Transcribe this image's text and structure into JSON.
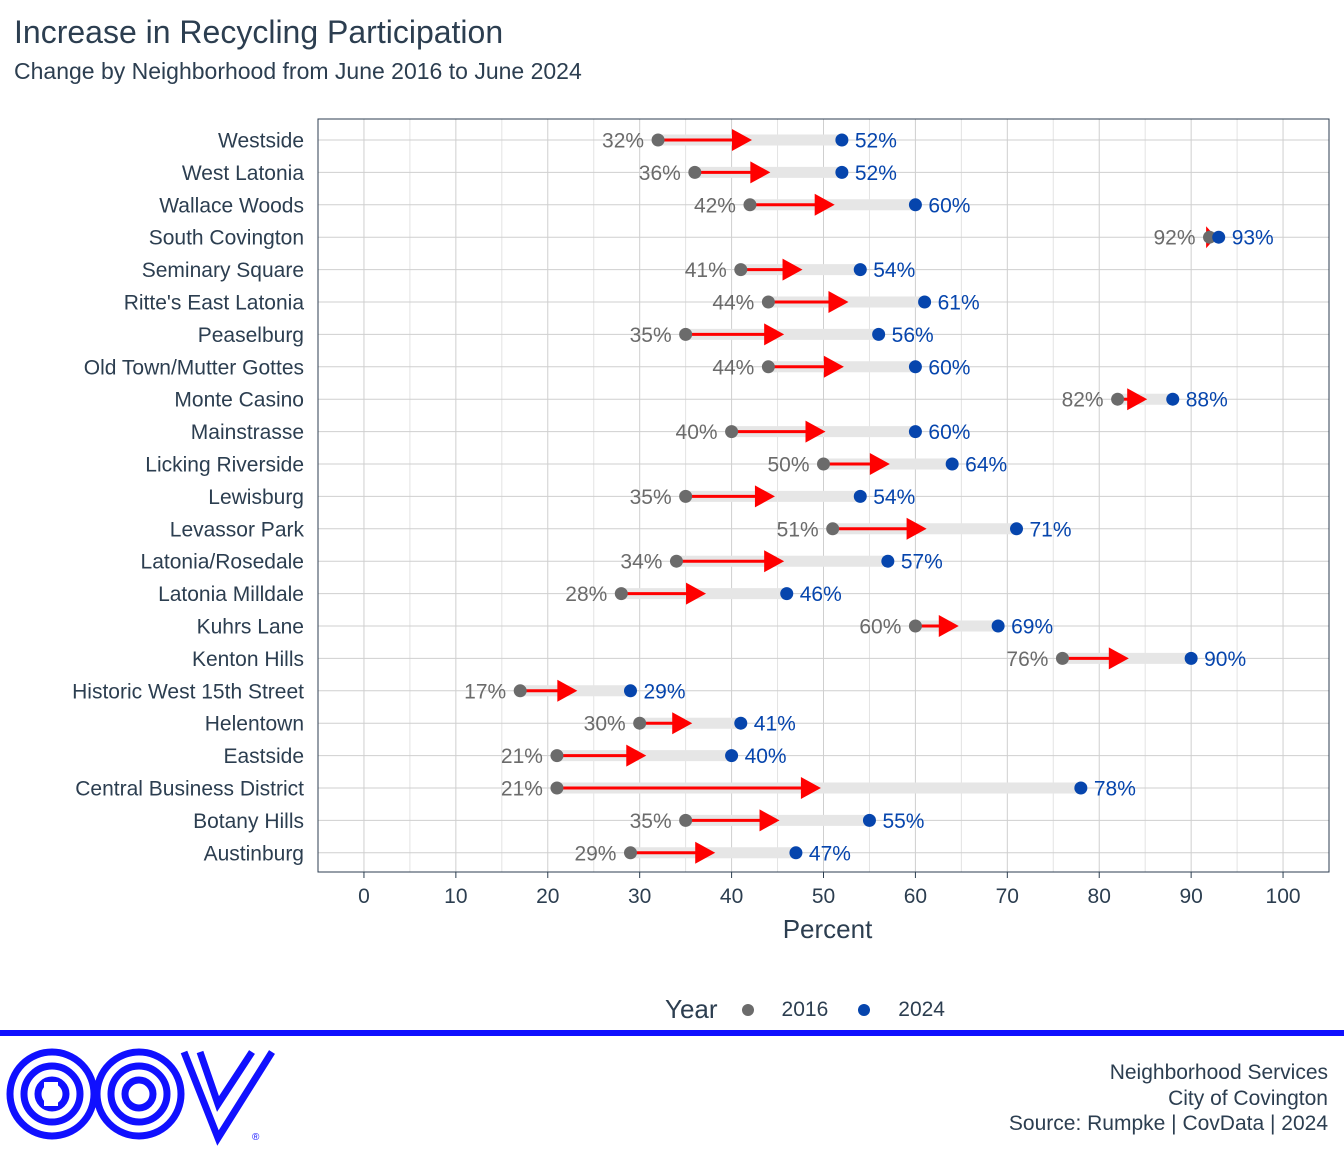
{
  "title": "Increase in Recycling Participation",
  "subtitle": "Change by Neighborhood from June 2016 to June 2024",
  "colors": {
    "y2016": "#6b6b6b",
    "y2024": "#0645ad",
    "arrow": "#ff0000",
    "band": "#e6e6e6",
    "brand": "#1010ff"
  },
  "chart_data": {
    "type": "dumbbell",
    "xlabel": "Percent",
    "xlim": [
      -5,
      105
    ],
    "xticks": [
      "0",
      "10",
      "20",
      "30",
      "40",
      "50",
      "60",
      "70",
      "80",
      "90",
      "100"
    ],
    "grid": true,
    "legend_position": "bottom",
    "legend_title": "Year",
    "series_names": [
      "2016",
      "2024"
    ],
    "rows": [
      {
        "name": "Westside",
        "v2016": 32,
        "v2024": 52,
        "l2016": "32%",
        "l2024": "52%"
      },
      {
        "name": "West Latonia",
        "v2016": 36,
        "v2024": 52,
        "l2016": "36%",
        "l2024": "52%"
      },
      {
        "name": "Wallace Woods",
        "v2016": 42,
        "v2024": 60,
        "l2016": "42%",
        "l2024": "60%"
      },
      {
        "name": "South Covington",
        "v2016": 92,
        "v2024": 93,
        "l2016": "92%",
        "l2024": "93%"
      },
      {
        "name": "Seminary Square",
        "v2016": 41,
        "v2024": 54,
        "l2016": "41%",
        "l2024": "54%"
      },
      {
        "name": "Ritte's East Latonia",
        "v2016": 44,
        "v2024": 61,
        "l2016": "44%",
        "l2024": "61%"
      },
      {
        "name": "Peaselburg",
        "v2016": 35,
        "v2024": 56,
        "l2016": "35%",
        "l2024": "56%"
      },
      {
        "name": "Old Town/Mutter Gottes",
        "v2016": 44,
        "v2024": 60,
        "l2016": "44%",
        "l2024": "60%"
      },
      {
        "name": "Monte Casino",
        "v2016": 82,
        "v2024": 88,
        "l2016": "82%",
        "l2024": "88%"
      },
      {
        "name": "Mainstrasse",
        "v2016": 40,
        "v2024": 60,
        "l2016": "40%",
        "l2024": "60%"
      },
      {
        "name": "Licking Riverside",
        "v2016": 50,
        "v2024": 64,
        "l2016": "50%",
        "l2024": "64%"
      },
      {
        "name": "Lewisburg",
        "v2016": 35,
        "v2024": 54,
        "l2016": "35%",
        "l2024": "54%"
      },
      {
        "name": "Levassor Park",
        "v2016": 51,
        "v2024": 71,
        "l2016": "51%",
        "l2024": "71%"
      },
      {
        "name": "Latonia/Rosedale",
        "v2016": 34,
        "v2024": 57,
        "l2016": "34%",
        "l2024": "57%"
      },
      {
        "name": "Latonia Milldale",
        "v2016": 28,
        "v2024": 46,
        "l2016": "28%",
        "l2024": "46%"
      },
      {
        "name": "Kuhrs Lane",
        "v2016": 60,
        "v2024": 69,
        "l2016": "60%",
        "l2024": "69%"
      },
      {
        "name": "Kenton Hills",
        "v2016": 76,
        "v2024": 90,
        "l2016": "76%",
        "l2024": "90%"
      },
      {
        "name": "Historic West 15th Street",
        "v2016": 17,
        "v2024": 29,
        "l2016": "17%",
        "l2024": "29%"
      },
      {
        "name": "Helentown",
        "v2016": 30,
        "v2024": 41,
        "l2016": "30%",
        "l2024": "41%"
      },
      {
        "name": "Eastside",
        "v2016": 21,
        "v2024": 40,
        "l2016": "21%",
        "l2024": "40%"
      },
      {
        "name": "Central Business District",
        "v2016": 21,
        "v2024": 78,
        "l2016": "21%",
        "l2024": "78%"
      },
      {
        "name": "Botany Hills",
        "v2016": 35,
        "v2024": 55,
        "l2016": "35%",
        "l2024": "55%"
      },
      {
        "name": "Austinburg",
        "v2016": 29,
        "v2024": 47,
        "l2016": "29%",
        "l2024": "47%"
      }
    ]
  },
  "legend": {
    "title": "Year",
    "items": [
      "2016",
      "2024"
    ]
  },
  "footer": {
    "line1": "Neighborhood Services",
    "line2": "City of Covington",
    "line3": "Source: Rumpke | CovData | 2024"
  },
  "logo": {
    "icon": "cov-logo",
    "registered_mark": "®"
  }
}
